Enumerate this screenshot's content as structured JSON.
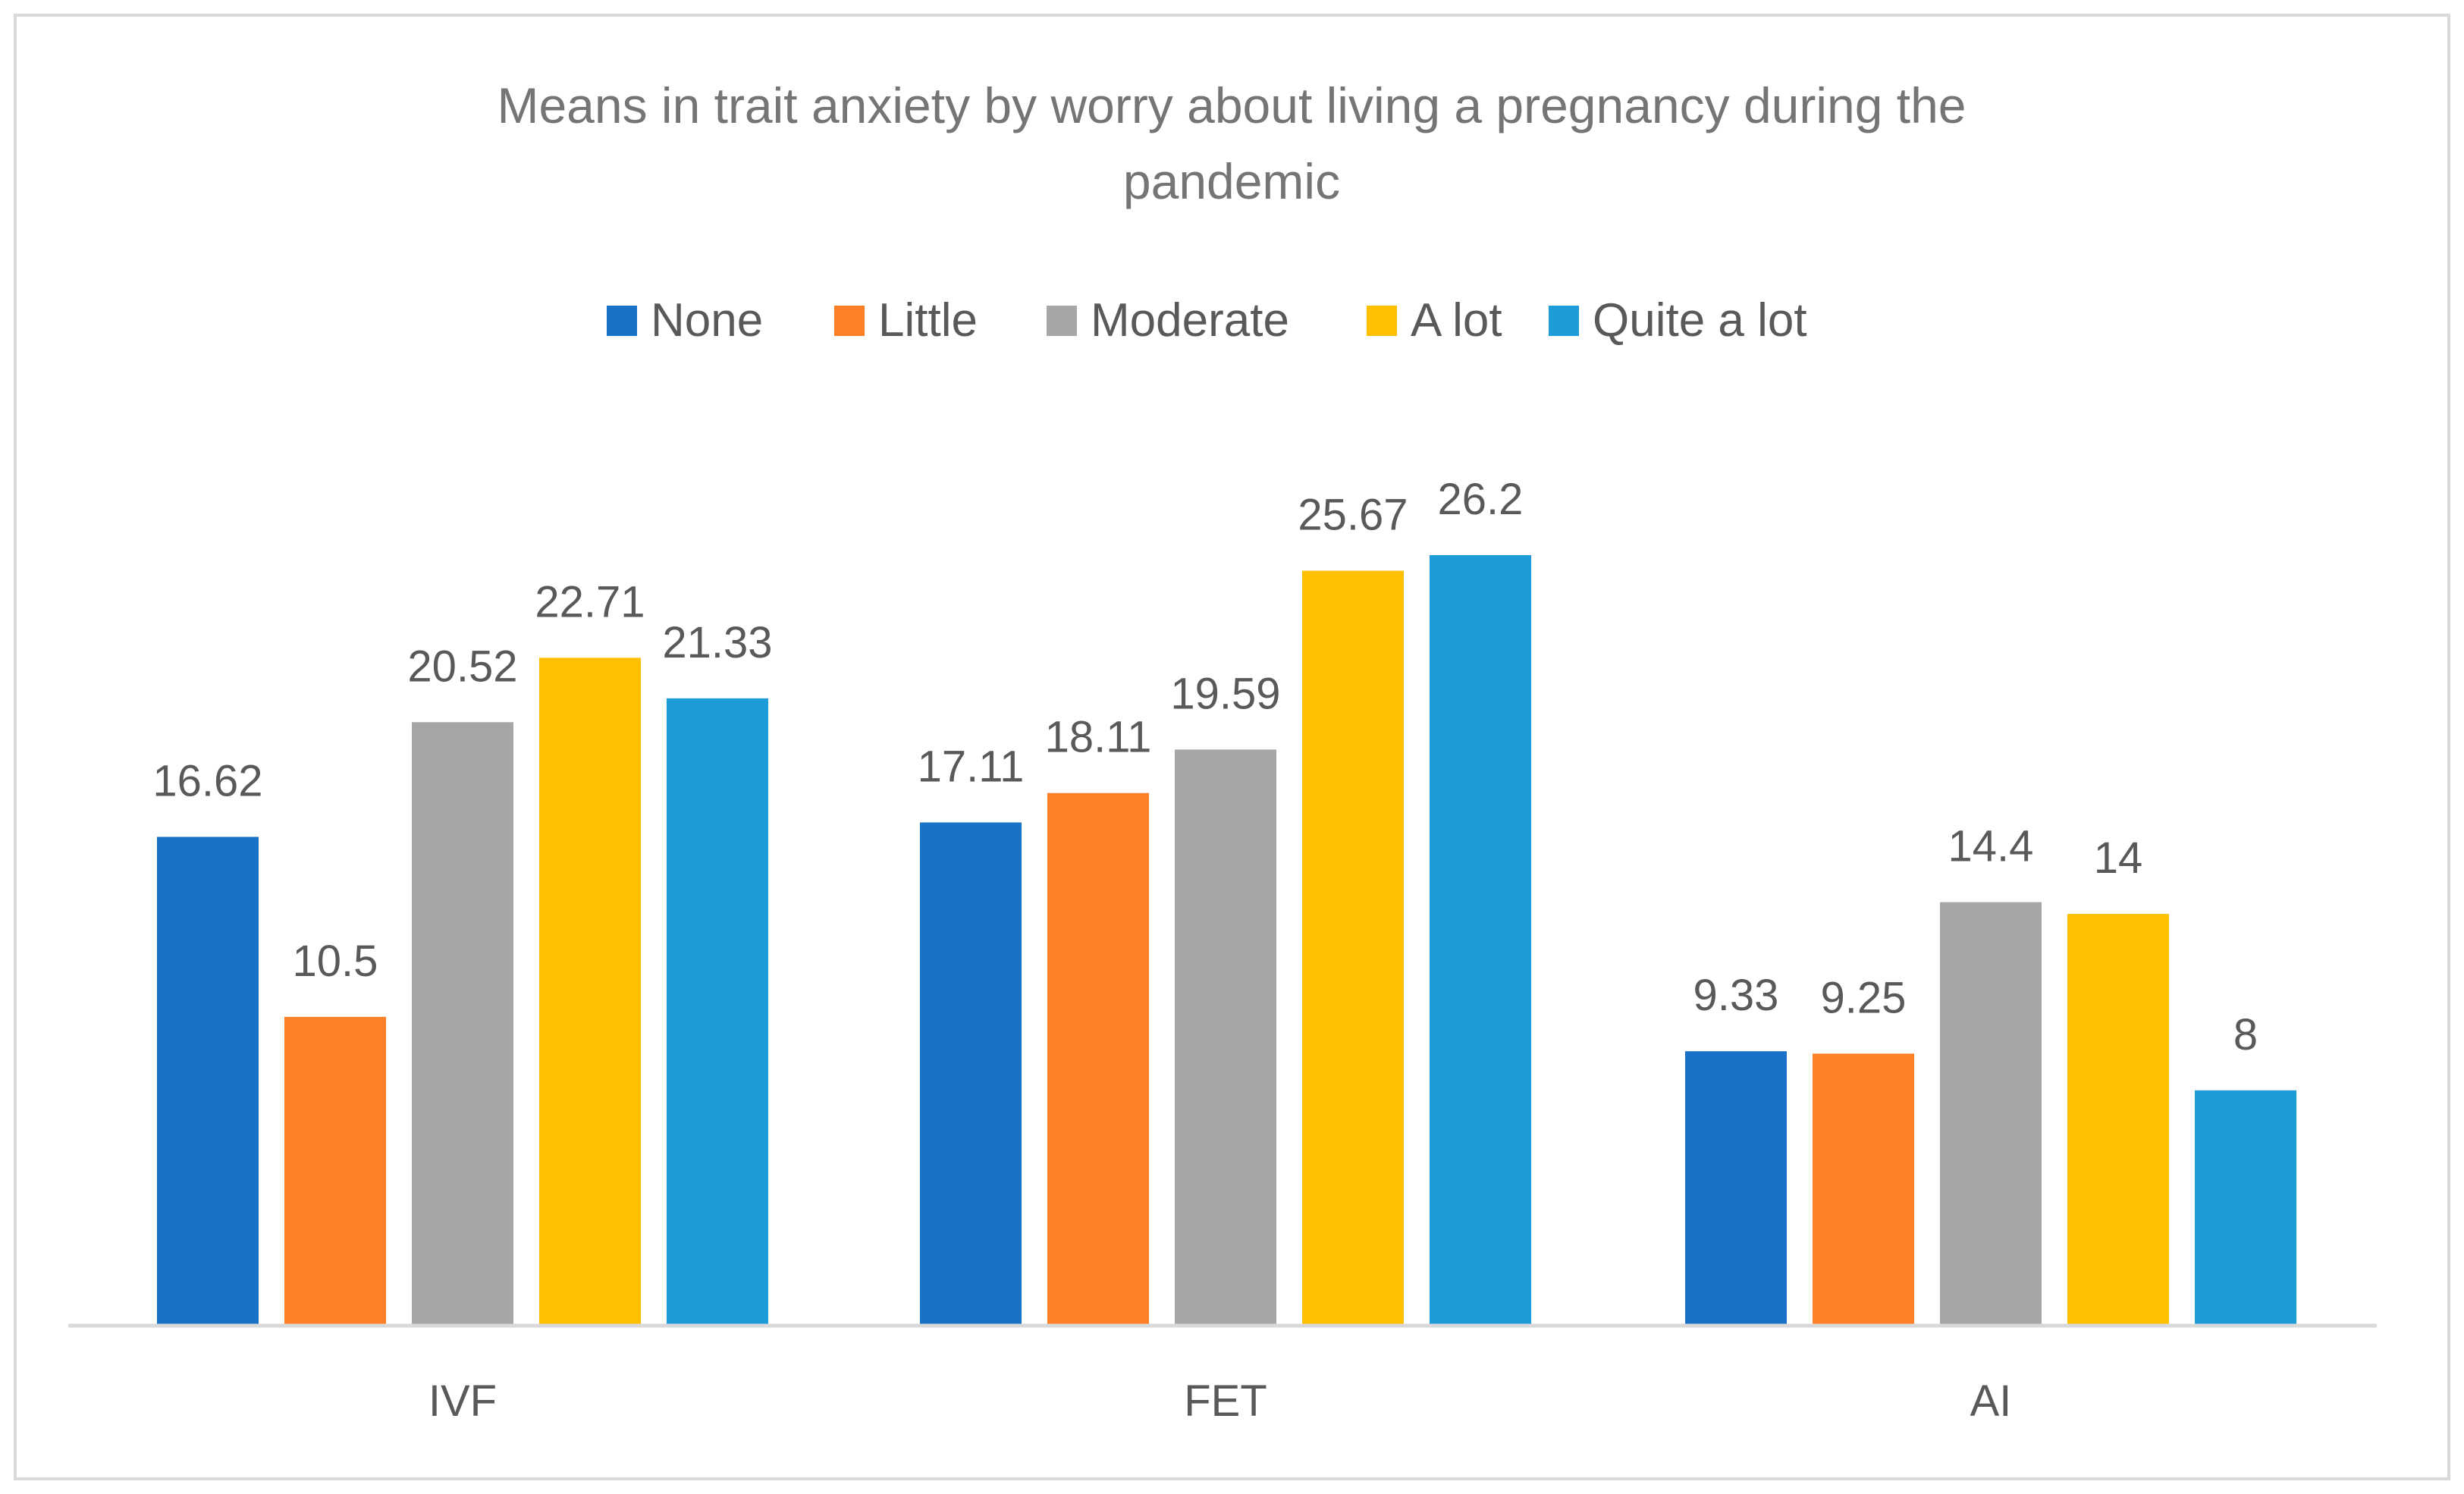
{
  "chart_data": {
    "type": "bar",
    "title": "Means in trait anxiety by worry about living a pregnancy during the pandemic",
    "title_lines": [
      "Means in trait anxiety by worry about living a pregnancy during the",
      "pandemic"
    ],
    "categories": [
      "IVF",
      "FET",
      "AI"
    ],
    "series": [
      {
        "name": "None",
        "color": "#1971C8",
        "values": [
          16.62,
          17.11,
          9.33
        ],
        "labels": [
          "16.62",
          "17.11",
          "9.33"
        ]
      },
      {
        "name": "Little",
        "color": "#FF7F27",
        "values": [
          10.5,
          18.11,
          9.25
        ],
        "labels": [
          "10.5",
          "18.11",
          "9.25"
        ]
      },
      {
        "name": "Moderate",
        "color": "#A6A6A6",
        "values": [
          20.52,
          19.59,
          14.4
        ],
        "labels": [
          "20.52",
          "19.59",
          "14.4"
        ]
      },
      {
        "name": "A lot",
        "color": "#FFC000",
        "values": [
          22.71,
          25.67,
          14
        ],
        "labels": [
          "22.71",
          "25.67",
          "14"
        ]
      },
      {
        "name": "Quite a lot",
        "color": "#1E9CD9",
        "values": [
          21.33,
          26.2,
          8
        ],
        "labels": [
          "21.33",
          "26.2",
          "8"
        ]
      }
    ],
    "xlabel": "",
    "ylabel": "",
    "ylim": [
      0,
      26.2
    ],
    "grid": false,
    "legend_position": "top-center",
    "data_labels": true
  }
}
